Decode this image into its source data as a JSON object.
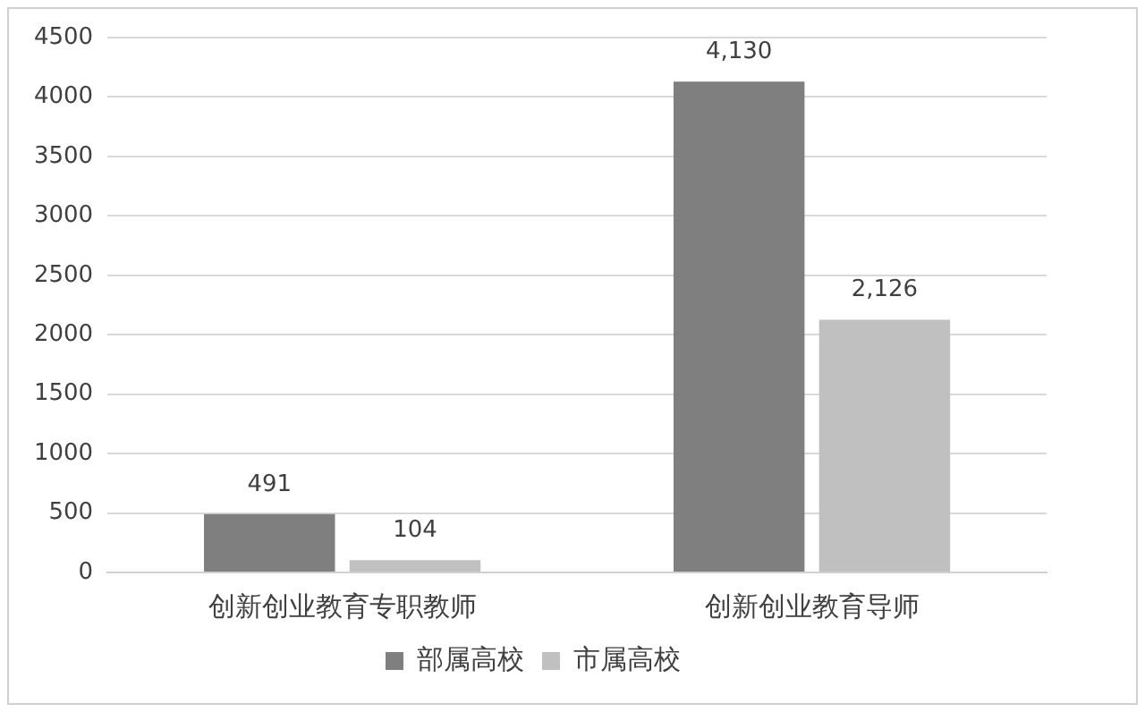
{
  "chart_data": {
    "type": "bar",
    "categories": [
      "创新创业教育专职教师",
      "创新创业教育导师"
    ],
    "series": [
      {
        "name": "部属高校",
        "color": "#7f7f7f",
        "values": [
          491,
          4130
        ],
        "value_labels": [
          "491",
          "4,130"
        ]
      },
      {
        "name": "市属高校",
        "color": "#c0c0c0",
        "values": [
          104,
          2126
        ],
        "value_labels": [
          "104",
          "2,126"
        ]
      }
    ],
    "ylim": [
      0,
      4500
    ],
    "yticks": [
      0,
      500,
      1000,
      1500,
      2000,
      2500,
      3000,
      3500,
      4000,
      4500
    ],
    "grid": "y",
    "legend": "bottom"
  }
}
